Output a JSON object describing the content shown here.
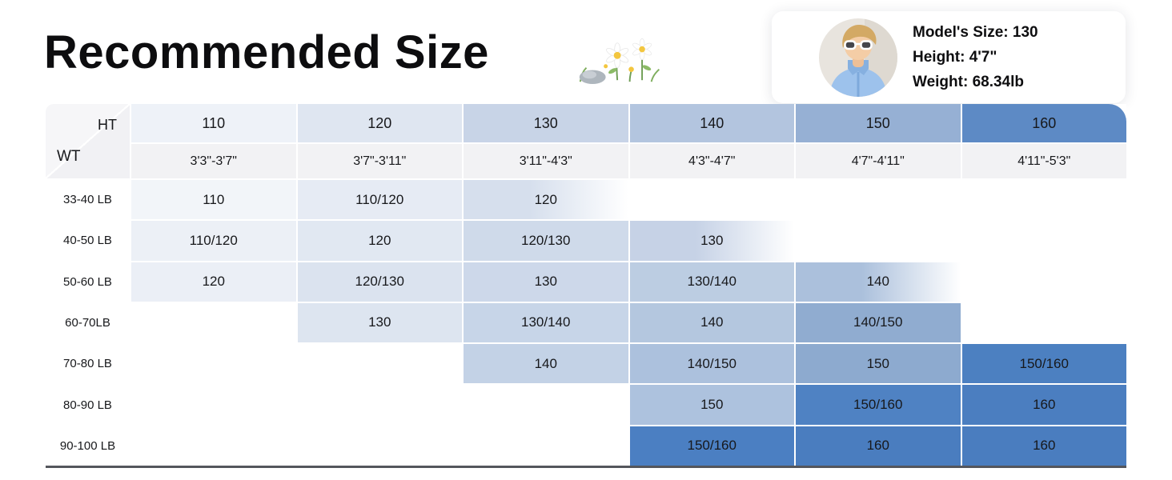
{
  "header": {
    "title": "Recommended Size"
  },
  "model_card": {
    "size": "Model's Size: 130",
    "height": "Height: 4'7\"",
    "weight": "Weight: 68.34lb"
  },
  "chart_data": {
    "type": "table",
    "title": "Recommended Size",
    "corner": {
      "ht": "HT",
      "wt": "WT"
    },
    "height_row_bg": "#f2f2f4",
    "columns": [
      {
        "size": "110",
        "height": "3'3\"-3'7\"",
        "header_bg": "#eef2f8"
      },
      {
        "size": "120",
        "height": "3'7\"-3'11\"",
        "header_bg": "#dfe6f1"
      },
      {
        "size": "130",
        "height": "3'11\"-4'3\"",
        "header_bg": "#c8d4e7"
      },
      {
        "size": "140",
        "height": "4'3\"-4'7\"",
        "header_bg": "#b3c5df"
      },
      {
        "size": "150",
        "height": "4'7\"-4'11\"",
        "header_bg": "#96b0d4"
      },
      {
        "size": "160",
        "height": "4'11\"-5'3\"",
        "header_bg": "#5d8ac5"
      }
    ],
    "rows": [
      {
        "weight": "33-40 LB",
        "cells": [
          {
            "text": "110",
            "bg": "#f2f5f9"
          },
          {
            "text": "110/120",
            "bg": "#e6ebf4"
          },
          {
            "text": "120",
            "bg": "#d6dfed",
            "fade": true
          },
          {
            "text": "",
            "bg": "#ffffff"
          },
          {
            "text": "",
            "bg": "#ffffff"
          },
          {
            "text": "",
            "bg": "#ffffff"
          }
        ]
      },
      {
        "weight": "40-50 LB",
        "cells": [
          {
            "text": "110/120",
            "bg": "#ecf0f6"
          },
          {
            "text": "120",
            "bg": "#e1e8f2"
          },
          {
            "text": "120/130",
            "bg": "#cfdaea"
          },
          {
            "text": "130",
            "bg": "#c6d2e6",
            "fade": true
          },
          {
            "text": "",
            "bg": "#ffffff"
          },
          {
            "text": "",
            "bg": "#ffffff"
          }
        ]
      },
      {
        "weight": "50-60 LB",
        "cells": [
          {
            "text": "120",
            "bg": "#ebeff6"
          },
          {
            "text": "120/130",
            "bg": "#dbe3ef"
          },
          {
            "text": "130",
            "bg": "#cdd8ea"
          },
          {
            "text": "130/140",
            "bg": "#bccde2"
          },
          {
            "text": "140",
            "bg": "#abc0dc",
            "fade": true
          },
          {
            "text": "",
            "bg": "#ffffff"
          }
        ]
      },
      {
        "weight": "60-70LB",
        "cells": [
          {
            "text": "",
            "bg": "#ffffff"
          },
          {
            "text": "130",
            "bg": "#dde5f0"
          },
          {
            "text": "130/140",
            "bg": "#c7d5e8"
          },
          {
            "text": "140",
            "bg": "#b4c7df"
          },
          {
            "text": "140/150",
            "bg": "#90acd0"
          },
          {
            "text": "",
            "bg": "#ffffff"
          }
        ]
      },
      {
        "weight": "70-80 LB",
        "cells": [
          {
            "text": "",
            "bg": "#ffffff"
          },
          {
            "text": "",
            "bg": "#ffffff"
          },
          {
            "text": "140",
            "bg": "#c3d2e6"
          },
          {
            "text": "140/150",
            "bg": "#acc1dd"
          },
          {
            "text": "150",
            "bg": "#8daacf"
          },
          {
            "text": "150/160",
            "bg": "#4c80c1"
          }
        ]
      },
      {
        "weight": "80-90 LB",
        "cells": [
          {
            "text": "",
            "bg": "#ffffff"
          },
          {
            "text": "",
            "bg": "#ffffff"
          },
          {
            "text": "",
            "bg": "#ffffff"
          },
          {
            "text": "150",
            "bg": "#adc2de"
          },
          {
            "text": "150/160",
            "bg": "#4f82c3"
          },
          {
            "text": "160",
            "bg": "#4b7ec0"
          }
        ]
      },
      {
        "weight": "90-100 LB",
        "cells": [
          {
            "text": "",
            "bg": "#ffffff"
          },
          {
            "text": "",
            "bg": "#ffffff"
          },
          {
            "text": "",
            "bg": "#ffffff"
          },
          {
            "text": "150/160",
            "bg": "#4b7fc2"
          },
          {
            "text": "160",
            "bg": "#4a7dbf"
          },
          {
            "text": "160",
            "bg": "#4a7dbf"
          }
        ]
      }
    ]
  }
}
